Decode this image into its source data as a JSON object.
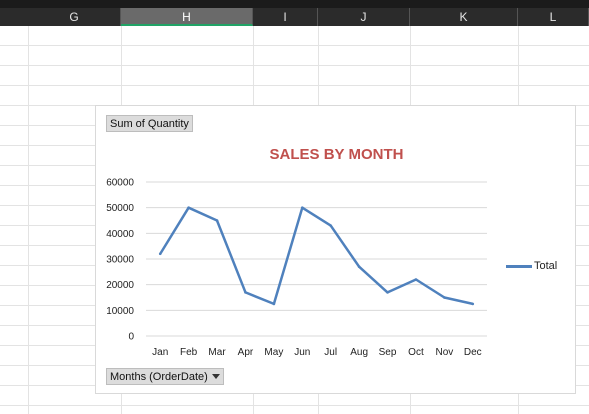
{
  "column_headers": [
    {
      "label": "G"
    },
    {
      "label": "H",
      "selected": true
    },
    {
      "label": "I"
    },
    {
      "label": "J"
    },
    {
      "label": "K"
    },
    {
      "label": "L"
    }
  ],
  "pivot_chart": {
    "field_button": "Sum of Quantity",
    "axis_field_button": "Months (OrderDate)",
    "legend_label": "Total"
  },
  "chart_data": {
    "type": "line",
    "title": "SALES BY MONTH",
    "categories": [
      "Jan",
      "Feb",
      "Mar",
      "Apr",
      "May",
      "Jun",
      "Jul",
      "Aug",
      "Sep",
      "Oct",
      "Nov",
      "Dec"
    ],
    "series": [
      {
        "name": "Total",
        "values": [
          32000,
          50000,
          45000,
          17000,
          12500,
          50000,
          43000,
          27000,
          17000,
          22000,
          15000,
          12500
        ],
        "color": "#4f81bd"
      }
    ],
    "ylim": [
      0,
      60000
    ],
    "yticks": [
      0,
      10000,
      20000,
      30000,
      40000,
      50000,
      60000
    ],
    "grid": true,
    "legend": "right"
  }
}
